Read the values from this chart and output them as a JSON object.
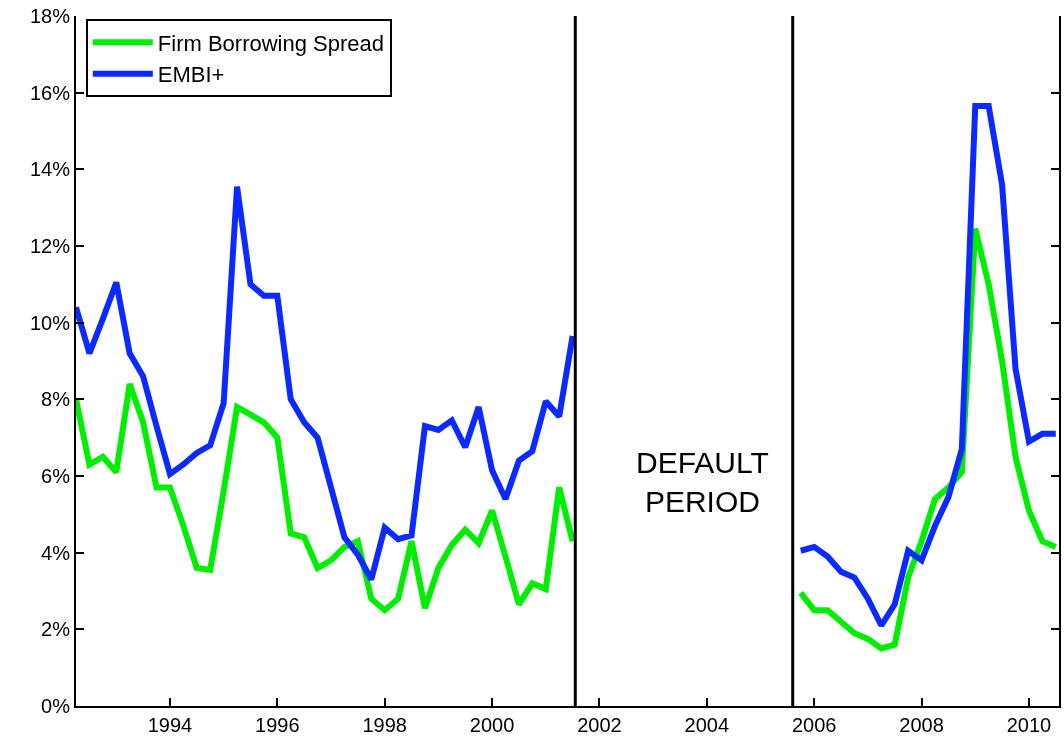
{
  "chart_data": {
    "type": "line",
    "xlim": [
      1992.25,
      2010.56
    ],
    "xticks": [
      1994,
      1996,
      1998,
      2000,
      2002,
      2004,
      2006,
      2008,
      2010
    ],
    "ylim": [
      0,
      18
    ],
    "yticks": [
      {
        "value": 0,
        "label": "0%"
      },
      {
        "value": 2,
        "label": "2%"
      },
      {
        "value": 4,
        "label": "4%"
      },
      {
        "value": 6,
        "label": "6%"
      },
      {
        "value": 8,
        "label": "8%"
      },
      {
        "value": 10,
        "label": "10%"
      },
      {
        "value": 12,
        "label": "12%"
      },
      {
        "value": 14,
        "label": "14%"
      },
      {
        "value": 16,
        "label": "16%"
      },
      {
        "value": 18,
        "label": "18%"
      }
    ],
    "legend": "top left",
    "marker": "none",
    "line_style": "solid",
    "ref_lines": [
      {
        "axis": "x",
        "value": 2001.55,
        "color": "#000000"
      },
      {
        "axis": "x",
        "value": 2005.6,
        "color": "#000000"
      }
    ],
    "annotations": [
      "DEFAULT PERIOD"
    ],
    "series": [
      {
        "name": "Firm Borrowing Spread",
        "color": "#00ee00",
        "x": [
          1992.25,
          1992.5,
          1992.75,
          1993.0,
          1993.25,
          1993.5,
          1993.75,
          1994.0,
          1994.25,
          1994.5,
          1994.75,
          1995.0,
          1995.25,
          1995.5,
          1995.75,
          1996.0,
          1996.25,
          1996.5,
          1996.75,
          1997.0,
          1997.25,
          1997.5,
          1997.75,
          1998.0,
          1998.25,
          1998.5,
          1998.75,
          1999.0,
          1999.25,
          1999.5,
          1999.75,
          2000.0,
          2000.25,
          2000.5,
          2000.75,
          2001.0,
          2001.25,
          2001.5,
          2003.5,
          2005.75,
          2006.0,
          2006.25,
          2006.5,
          2006.75,
          2007.0,
          2007.25,
          2007.5,
          2007.75,
          2008.0,
          2008.25,
          2008.5,
          2008.75,
          2009.0,
          2009.25,
          2009.5,
          2009.75,
          2010.0,
          2010.25,
          2010.5
        ],
        "values": [
          8.0,
          6.3,
          6.5,
          6.1,
          8.4,
          7.4,
          5.7,
          5.7,
          4.7,
          3.6,
          3.55,
          5.6,
          7.8,
          7.6,
          7.4,
          7.0,
          4.5,
          4.4,
          3.6,
          3.8,
          4.15,
          4.3,
          2.8,
          2.5,
          2.8,
          4.3,
          2.55,
          3.6,
          4.2,
          4.6,
          4.25,
          5.1,
          3.9,
          2.65,
          3.2,
          3.05,
          5.7,
          4.3,
          null,
          2.95,
          2.5,
          2.5,
          2.2,
          1.9,
          1.75,
          1.5,
          1.6,
          3.35,
          4.3,
          5.4,
          5.7,
          6.1,
          12.45,
          11.0,
          9.0,
          6.5,
          5.1,
          4.3,
          4.15
        ]
      },
      {
        "name": "EMBI+",
        "color": "#0a2aff",
        "x": [
          1992.25,
          1992.5,
          1992.75,
          1993.0,
          1993.25,
          1993.5,
          1993.75,
          1994.0,
          1994.25,
          1994.5,
          1994.75,
          1995.0,
          1995.25,
          1995.5,
          1995.75,
          1996.0,
          1996.25,
          1996.5,
          1996.75,
          1997.0,
          1997.25,
          1997.5,
          1997.75,
          1998.0,
          1998.25,
          1998.5,
          1998.75,
          1999.0,
          1999.25,
          1999.5,
          1999.75,
          2000.0,
          2000.25,
          2000.5,
          2000.75,
          2001.0,
          2001.25,
          2001.5,
          2003.5,
          2005.75,
          2006.0,
          2006.25,
          2006.5,
          2006.75,
          2007.0,
          2007.25,
          2007.5,
          2007.75,
          2008.0,
          2008.25,
          2008.5,
          2008.75,
          2009.0,
          2009.25,
          2009.5,
          2009.75,
          2010.0,
          2010.25,
          2010.5
        ],
        "values": [
          10.4,
          9.2,
          10.1,
          11.05,
          9.2,
          8.6,
          7.3,
          6.05,
          6.3,
          6.6,
          6.8,
          7.9,
          13.55,
          11.0,
          10.7,
          10.7,
          8.0,
          7.4,
          7.0,
          5.7,
          4.4,
          3.95,
          3.3,
          4.65,
          4.35,
          4.45,
          7.3,
          7.2,
          7.45,
          6.75,
          7.8,
          6.15,
          5.4,
          6.4,
          6.65,
          7.95,
          7.55,
          9.65,
          null,
          4.05,
          4.15,
          3.9,
          3.5,
          3.35,
          2.8,
          2.1,
          2.65,
          4.05,
          3.8,
          4.7,
          5.45,
          6.7,
          15.65,
          15.65,
          13.6,
          8.8,
          6.9,
          7.1,
          7.1
        ]
      }
    ]
  }
}
